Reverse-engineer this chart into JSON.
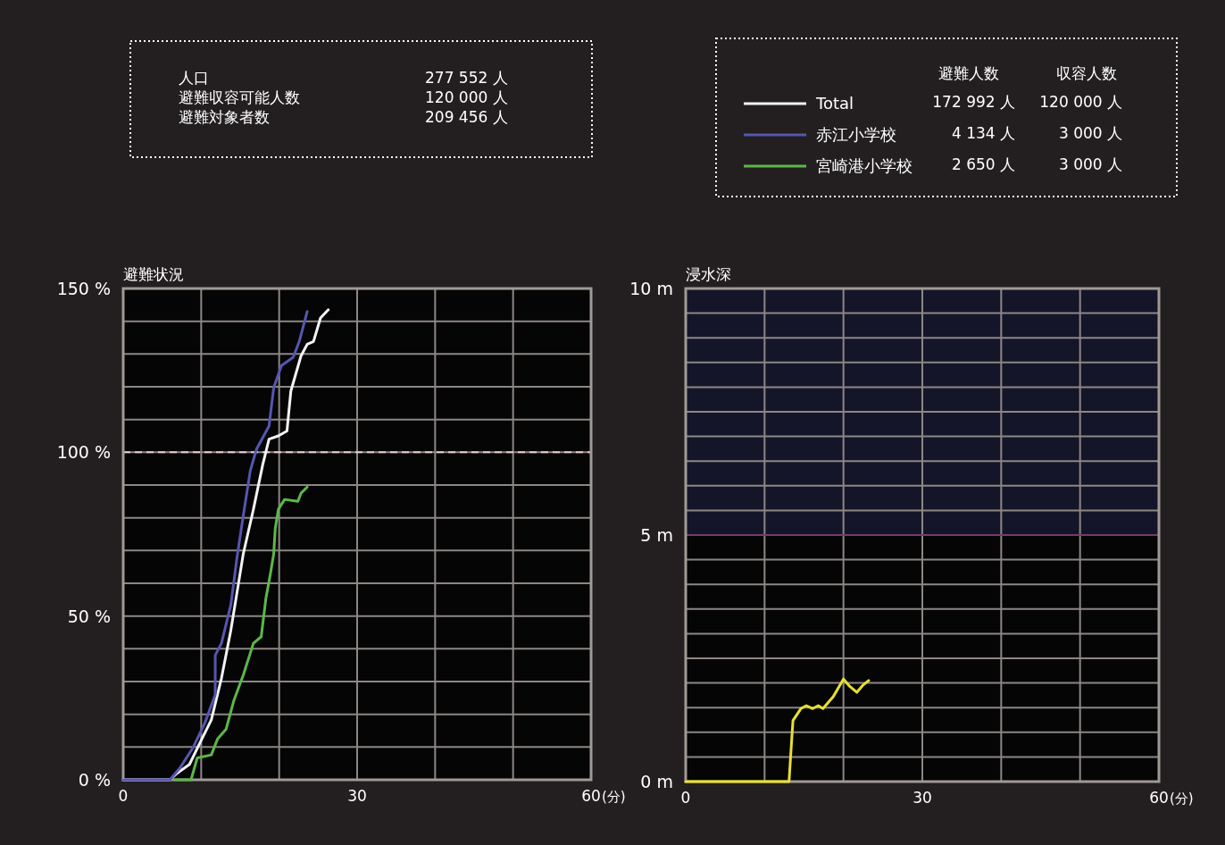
{
  "chart_data": [
    {
      "type": "other",
      "annotations": [
        "人口",
        "277 552 人",
        "避難収容可能人数",
        "120 000 人",
        "避難対象者数",
        "209 456 人"
      ]
    },
    {
      "type": "line",
      "title": "避難状況",
      "xlabel": "(分)",
      "xlim": [
        0,
        60
      ],
      "ylim": [
        0,
        150
      ],
      "xticks": [
        0,
        {
          "value": 10,
          "label": null
        },
        {
          "value": 20,
          "label": null
        },
        30,
        {
          "value": 40,
          "label": null
        },
        {
          "value": 50,
          "label": null
        },
        60
      ],
      "yticks": [
        {
          "value": 0,
          "label": "0 %"
        },
        {
          "value": 10,
          "label": null
        },
        {
          "value": 20,
          "label": null
        },
        {
          "value": 30,
          "label": null
        },
        {
          "value": 40,
          "label": null
        },
        {
          "value": 50,
          "label": "50 %"
        },
        {
          "value": 60,
          "label": null
        },
        {
          "value": 70,
          "label": null
        },
        {
          "value": 80,
          "label": null
        },
        {
          "value": 90,
          "label": null
        },
        {
          "value": 100,
          "label": "100 %"
        },
        {
          "value": 110,
          "label": null
        },
        {
          "value": 120,
          "label": null
        },
        {
          "value": 130,
          "label": null
        },
        {
          "value": 140,
          "label": null
        },
        {
          "value": 150,
          "label": "150 %"
        }
      ],
      "grid": true,
      "legend": "top right",
      "line_style": "solid",
      "ref_lines": [
        {
          "axis": "y",
          "value": 100,
          "color": "#e8cccc",
          "line_style": "dashed"
        }
      ],
      "annotations": [
        "避難人数",
        "収容人数",
        "172 992 人",
        "120 000 人",
        "4 134 人",
        "3 000 人",
        "2 650 人",
        "3 000 人"
      ],
      "series": [
        {
          "name": "Total",
          "color": "#f4f4f4",
          "x": [
            0,
            6.0,
            6.9,
            8.5,
            9.7,
            11.3,
            12.6,
            13.8,
            14.6,
            15.4,
            16.7,
            17.9,
            18.7,
            19.9,
            21.0,
            21.5,
            22.8,
            23.6,
            24.4,
            25.3,
            26.3
          ],
          "values": [
            0,
            0,
            2,
            4.7,
            10.6,
            18.3,
            31,
            45.6,
            57.3,
            69,
            82.6,
            96.3,
            104,
            105,
            106.5,
            118.7,
            129.4,
            133,
            133.8,
            141,
            143.5
          ]
        },
        {
          "name": "赤江小学校",
          "color": "#5656b0",
          "x": [
            0,
            6.0,
            7.3,
            8.9,
            10.5,
            11.8,
            11.8,
            12.6,
            13.8,
            14.6,
            15.4,
            16.3,
            17.1,
            18.7,
            19.3,
            20.3,
            21.8,
            22.6,
            23.6
          ],
          "values": [
            0,
            0,
            3.7,
            9.6,
            17.5,
            26,
            38,
            41.7,
            53.4,
            68,
            80.7,
            94.4,
            101,
            108,
            119.7,
            126.5,
            129,
            134,
            143
          ]
        },
        {
          "name": "宮崎港小学校",
          "color": "#5cb848",
          "x": [
            6.6,
            8.7,
            9.5,
            11.3,
            12.1,
            13.2,
            14.2,
            15.4,
            16.7,
            17.7,
            18.3,
            18.9,
            19.3,
            19.5,
            19.9,
            20.7,
            22.4,
            22.8,
            23.6
          ],
          "values": [
            0,
            0,
            6.7,
            7.6,
            12.5,
            15.5,
            24.3,
            32,
            41.7,
            43.7,
            55.4,
            63.2,
            69,
            76.8,
            82.6,
            85.6,
            85,
            87.5,
            89.4
          ]
        }
      ]
    },
    {
      "type": "line",
      "title": "浸水深",
      "xlabel": "(分)",
      "xlim": [
        0,
        60
      ],
      "ylim": [
        0,
        10
      ],
      "xticks": [
        0,
        {
          "value": 10,
          "label": null
        },
        {
          "value": 20,
          "label": null
        },
        30,
        {
          "value": 40,
          "label": null
        },
        {
          "value": 50,
          "label": null
        },
        60
      ],
      "yticks": [
        {
          "value": 0,
          "label": "0 m"
        },
        {
          "value": 0.5,
          "label": null
        },
        {
          "value": 1,
          "label": null
        },
        {
          "value": 1.5,
          "label": null
        },
        {
          "value": 2,
          "label": null
        },
        {
          "value": 2.5,
          "label": null
        },
        {
          "value": 3,
          "label": null
        },
        {
          "value": 3.5,
          "label": null
        },
        {
          "value": 4,
          "label": null
        },
        {
          "value": 4.5,
          "label": null
        },
        {
          "value": 5,
          "label": "5 m"
        },
        {
          "value": 5.5,
          "label": null
        },
        {
          "value": 6,
          "label": null
        },
        {
          "value": 6.5,
          "label": null
        },
        {
          "value": 7,
          "label": null
        },
        {
          "value": 7.5,
          "label": null
        },
        {
          "value": 8,
          "label": null
        },
        {
          "value": 8.5,
          "label": null
        },
        {
          "value": 9,
          "label": null
        },
        {
          "value": 9.5,
          "label": null
        },
        {
          "value": 10,
          "label": "10 m"
        }
      ],
      "grid": true,
      "line_style": "solid",
      "bands": [
        {
          "axis": "y",
          "from": 5,
          "to": 10,
          "color": "#15152a"
        }
      ],
      "ref_lines": [
        {
          "axis": "y",
          "value": 5,
          "color": "#7a3a6a",
          "line_style": "solid"
        }
      ],
      "series": [
        {
          "color": "#e8e030",
          "x": [
            0,
            13.1,
            13.4,
            13.6,
            14.6,
            15.3,
            16.1,
            16.8,
            17.4,
            18.7,
            20.0,
            20.8,
            21.7,
            22.5,
            23.2
          ],
          "values": [
            0,
            0,
            0.76,
            1.24,
            1.48,
            1.54,
            1.48,
            1.54,
            1.48,
            1.72,
            2.08,
            1.93,
            1.81,
            1.96,
            2.05
          ]
        }
      ]
    }
  ]
}
